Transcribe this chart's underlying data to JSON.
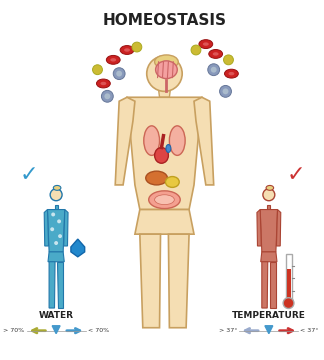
{
  "title": "HOMEOSTASIS",
  "title_fontsize": 11,
  "bg_color": "#ffffff",
  "left_label": "WATER",
  "right_label": "TEMPERATURE",
  "left_range_left": "> 70%",
  "left_range_right": "< 70%",
  "right_range_left": "> 37°",
  "right_range_right": "< 37°",
  "body_fill": "#F5DEB3",
  "body_outline": "#C8A060",
  "left_body_fill": "#4AAAC8",
  "left_body_outline": "#2277AA",
  "right_body_fill": "#CC7766",
  "right_body_outline": "#AA4433",
  "check_blue": "#3399CC",
  "check_red": "#CC3333",
  "organ_pink": "#F4A0A0",
  "organ_dark": "#CC5555",
  "organ_yellow": "#E8C840",
  "blood_red": "#CC2222",
  "blood_gray": "#8899BB",
  "blood_yellow": "#CCBB33",
  "arrow_blue": "#4499CC",
  "arrow_red": "#CC3333",
  "arrow_yellow": "#AAAA33",
  "arrow_gray": "#99AACC",
  "drop_blue": "#2288CC",
  "hair_color": "#E8D080",
  "skin_color": "#F5DEB3"
}
